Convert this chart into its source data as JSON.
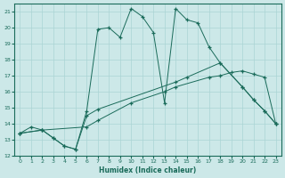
{
  "xlabel": "Humidex (Indice chaleur)",
  "xlim": [
    -0.5,
    23.5
  ],
  "ylim": [
    12,
    21.5
  ],
  "xticks": [
    0,
    1,
    2,
    3,
    4,
    5,
    6,
    7,
    8,
    9,
    10,
    11,
    12,
    13,
    14,
    15,
    16,
    17,
    18,
    19,
    20,
    21,
    22,
    23
  ],
  "yticks": [
    12,
    13,
    14,
    15,
    16,
    17,
    18,
    19,
    20,
    21
  ],
  "line_color": "#1a6b5a",
  "bg_color": "#cce8e8",
  "grid_color": "#aad4d4",
  "series_data": {
    "line1_x": [
      0,
      1,
      2,
      3,
      4,
      5,
      6,
      7,
      8,
      9,
      10,
      11,
      12,
      13,
      14,
      15,
      16,
      17,
      18,
      20,
      21,
      22,
      23
    ],
    "line1_y": [
      13.4,
      13.8,
      13.6,
      13.1,
      12.6,
      12.4,
      14.8,
      19.9,
      20.0,
      19.4,
      21.2,
      20.7,
      19.7,
      15.3,
      21.2,
      20.5,
      20.3,
      18.8,
      17.8,
      16.3,
      15.5,
      14.8,
      14.0
    ],
    "line2_x": [
      0,
      2,
      3,
      4,
      5,
      6,
      7,
      14,
      15,
      18,
      20,
      21,
      22,
      23
    ],
    "line2_y": [
      13.4,
      13.6,
      13.1,
      12.6,
      12.4,
      14.5,
      14.9,
      16.6,
      16.9,
      17.8,
      16.3,
      15.5,
      14.8,
      14.0
    ],
    "line3_x": [
      0,
      2,
      6,
      7,
      10,
      13,
      14,
      17,
      18,
      19,
      20,
      21,
      22,
      23
    ],
    "line3_y": [
      13.4,
      13.6,
      13.8,
      14.2,
      15.3,
      16.0,
      16.3,
      16.9,
      17.0,
      17.2,
      17.3,
      17.1,
      16.9,
      14.0
    ]
  }
}
